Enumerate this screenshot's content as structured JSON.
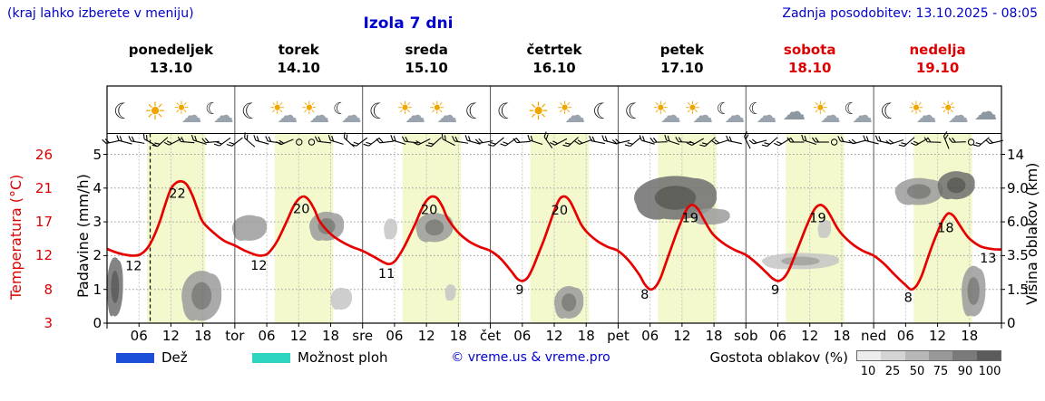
{
  "header": {
    "hint": "(kraj lahko izberete v meniju)",
    "title": "Izola 7 dni",
    "updated": "Zadnja posodobitev: 13.10.2025 - 08:05"
  },
  "colors": {
    "accent_blue": "#0000cd",
    "accent_red": "#dd0000",
    "day_band": "#f3f9cc",
    "curve_red": "#e60000"
  },
  "axes": {
    "left_temp": {
      "title": "Temperatura (°C)",
      "color": "#dd0000",
      "ticks": [
        "26",
        "21",
        "17",
        "12",
        "8",
        "3"
      ]
    },
    "left_precip": {
      "title": "Padavine (mm/h)",
      "ticks": [
        "5",
        "4",
        "3",
        "2",
        "1",
        "0"
      ]
    },
    "right_cloud": {
      "title": "Višina oblakov (km)",
      "ticks": [
        "14",
        "9.0",
        "6.0",
        "3.5",
        "1.5",
        "0"
      ]
    },
    "x_ticks": [
      {
        "label": "06",
        "hour": 6
      },
      {
        "label": "12",
        "hour": 12
      },
      {
        "label": "18",
        "hour": 18
      }
    ],
    "day_abbrevs": [
      "tor",
      "sre",
      "čet",
      "pet",
      "sob",
      "ned"
    ]
  },
  "days": [
    {
      "name": "ponedeljek",
      "date": "13.10",
      "color": "#000000",
      "icons": [
        "moon",
        "sun",
        "sun-cloud",
        "moon-cloud"
      ]
    },
    {
      "name": "torek",
      "date": "14.10",
      "color": "#000000",
      "icons": [
        "moon",
        "sun-cloud",
        "sun-cloud",
        "moon-cloud"
      ]
    },
    {
      "name": "sreda",
      "date": "15.10",
      "color": "#000000",
      "icons": [
        "moon",
        "sun-cloud",
        "sun-cloud",
        "moon"
      ]
    },
    {
      "name": "četrtek",
      "date": "16.10",
      "color": "#000000",
      "icons": [
        "moon",
        "sun",
        "sun-cloud",
        "moon"
      ]
    },
    {
      "name": "petek",
      "date": "17.10",
      "color": "#000000",
      "icons": [
        "moon",
        "sun-cloud",
        "sun-cloud",
        "moon-cloud"
      ]
    },
    {
      "name": "sobota",
      "date": "18.10",
      "color": "#dd0000",
      "icons": [
        "moon-cloud",
        "cloud",
        "sun-cloud",
        "moon-cloud"
      ]
    },
    {
      "name": "nedelja",
      "date": "19.10",
      "color": "#dd0000",
      "icons": [
        "moon",
        "sun-cloud",
        "sun-cloud",
        "cloud"
      ]
    }
  ],
  "chart_data": {
    "type": "line",
    "title": "Izola 7 dni",
    "hours_total": 168,
    "days_count": 7,
    "daytime_band_hours": [
      7.5,
      18.5
    ],
    "now_line_hour": 8.1,
    "temp_axis_anchors": [
      [
        3,
        0
      ],
      [
        8,
        1
      ],
      [
        12,
        2
      ],
      [
        17,
        3
      ],
      [
        21,
        4
      ],
      [
        26,
        5
      ]
    ],
    "cloud_axis_anchors_km": [
      [
        0,
        0
      ],
      [
        1.5,
        1
      ],
      [
        3.5,
        2
      ],
      [
        6,
        3
      ],
      [
        9,
        4
      ],
      [
        14,
        5
      ]
    ],
    "series": [
      {
        "name": "Temperatura",
        "color": "#e60000",
        "points": [
          [
            0,
            13
          ],
          [
            2,
            12.4
          ],
          [
            4,
            12.05
          ],
          [
            5,
            12
          ],
          [
            6,
            12.1
          ],
          [
            7,
            12.6
          ],
          [
            8,
            13.6
          ],
          [
            9,
            15.2
          ],
          [
            10,
            17.2
          ],
          [
            11,
            19.2
          ],
          [
            12,
            20.9
          ],
          [
            13,
            21.8
          ],
          [
            14,
            22
          ],
          [
            15,
            21.5
          ],
          [
            16,
            20.2
          ],
          [
            17,
            18.5
          ],
          [
            18,
            17
          ],
          [
            20,
            15.4
          ],
          [
            22,
            14.2
          ],
          [
            24,
            13.5
          ],
          [
            26,
            12.7
          ],
          [
            28,
            12.1
          ],
          [
            29,
            12
          ],
          [
            30,
            12.2
          ],
          [
            31,
            13
          ],
          [
            32,
            14.2
          ],
          [
            33,
            15.8
          ],
          [
            34,
            17.4
          ],
          [
            35,
            18.8
          ],
          [
            36,
            19.7
          ],
          [
            37,
            20
          ],
          [
            38,
            19.5
          ],
          [
            39,
            18.4
          ],
          [
            40,
            17
          ],
          [
            42,
            15.2
          ],
          [
            44,
            14.1
          ],
          [
            46,
            13.3
          ],
          [
            48,
            12.7
          ],
          [
            50,
            11.9
          ],
          [
            52,
            11.2
          ],
          [
            53,
            11
          ],
          [
            54,
            11.3
          ],
          [
            55,
            12.2
          ],
          [
            56,
            13.6
          ],
          [
            57,
            15.2
          ],
          [
            58,
            16.9
          ],
          [
            59,
            18.4
          ],
          [
            60,
            19.5
          ],
          [
            61,
            20
          ],
          [
            62,
            19.8
          ],
          [
            63,
            18.8
          ],
          [
            64,
            17.4
          ],
          [
            66,
            15.4
          ],
          [
            68,
            14.1
          ],
          [
            70,
            13.3
          ],
          [
            72,
            12.7
          ],
          [
            74,
            11.6
          ],
          [
            76,
            10.1
          ],
          [
            77,
            9.3
          ],
          [
            78,
            9
          ],
          [
            79,
            9.4
          ],
          [
            80,
            10.6
          ],
          [
            81,
            12.2
          ],
          [
            82,
            14.2
          ],
          [
            83,
            16.4
          ],
          [
            84,
            18.3
          ],
          [
            85,
            19.7
          ],
          [
            86,
            20
          ],
          [
            87,
            19.4
          ],
          [
            88,
            18.1
          ],
          [
            89,
            16.7
          ],
          [
            90,
            15.6
          ],
          [
            92,
            14.2
          ],
          [
            94,
            13.3
          ],
          [
            96,
            12.7
          ],
          [
            98,
            11.4
          ],
          [
            100,
            9.7
          ],
          [
            101,
            8.6
          ],
          [
            102,
            8
          ],
          [
            103,
            8.3
          ],
          [
            104,
            9.4
          ],
          [
            105,
            11.2
          ],
          [
            106,
            13.2
          ],
          [
            107,
            15.4
          ],
          [
            108,
            17.3
          ],
          [
            109,
            18.6
          ],
          [
            110,
            19
          ],
          [
            111,
            18.5
          ],
          [
            112,
            17.4
          ],
          [
            113,
            16.1
          ],
          [
            114,
            15
          ],
          [
            116,
            13.7
          ],
          [
            118,
            12.8
          ],
          [
            120,
            12.1
          ],
          [
            122,
            11.1
          ],
          [
            124,
            9.9
          ],
          [
            125,
            9.3
          ],
          [
            126,
            9
          ],
          [
            127,
            9.3
          ],
          [
            128,
            10.2
          ],
          [
            129,
            11.7
          ],
          [
            130,
            13.6
          ],
          [
            131,
            15.6
          ],
          [
            132,
            17.4
          ],
          [
            133,
            18.6
          ],
          [
            134,
            19
          ],
          [
            135,
            18.6
          ],
          [
            136,
            17.6
          ],
          [
            137,
            16.3
          ],
          [
            138,
            15.2
          ],
          [
            140,
            13.7
          ],
          [
            142,
            12.7
          ],
          [
            144,
            12
          ],
          [
            146,
            11
          ],
          [
            148,
            9.7
          ],
          [
            150,
            8.5
          ],
          [
            151,
            8
          ],
          [
            152,
            8.4
          ],
          [
            153,
            9.6
          ],
          [
            154,
            11.4
          ],
          [
            155,
            13.5
          ],
          [
            156,
            15.5
          ],
          [
            157,
            17.2
          ],
          [
            158,
            18
          ],
          [
            159,
            17.7
          ],
          [
            160,
            16.7
          ],
          [
            161,
            15.5
          ],
          [
            162,
            14.5
          ],
          [
            164,
            13.4
          ],
          [
            166,
            13
          ],
          [
            168,
            12.9
          ]
        ]
      }
    ],
    "point_labels": [
      {
        "text": "12",
        "t": 5,
        "dy": 16
      },
      {
        "text": "22",
        "t": 13.2,
        "dy": 17
      },
      {
        "text": "12",
        "t": 28.5,
        "dy": 16
      },
      {
        "text": "20",
        "t": 36.5,
        "dy": 17
      },
      {
        "text": "11",
        "t": 52.5,
        "dy": 16
      },
      {
        "text": "20",
        "t": 60.5,
        "dy": 17
      },
      {
        "text": "9",
        "t": 77.5,
        "dy": 16
      },
      {
        "text": "20",
        "t": 85,
        "dy": 17
      },
      {
        "text": "8",
        "t": 101,
        "dy": 16
      },
      {
        "text": "19",
        "t": 109.5,
        "dy": 17
      },
      {
        "text": "9",
        "t": 125.5,
        "dy": 16
      },
      {
        "text": "19",
        "t": 133.5,
        "dy": 17
      },
      {
        "text": "8",
        "t": 150.5,
        "dy": 16
      },
      {
        "text": "18",
        "t": 157.5,
        "dy": 17
      },
      {
        "text": "13",
        "t": 165.5,
        "dy": 16
      }
    ],
    "cloud_patches": [
      {
        "t0": 0,
        "t1": 3,
        "km0": 0.3,
        "km1": 3.4,
        "shade": "dark",
        "core": true
      },
      {
        "t0": 14,
        "t1": 21.5,
        "km0": 0.1,
        "km1": 2.6,
        "shade": "mid",
        "core": true
      },
      {
        "t0": 23.5,
        "t1": 30,
        "km0": 4.6,
        "km1": 6.6,
        "shade": "mid",
        "core": false
      },
      {
        "t0": 38,
        "t1": 44.5,
        "km0": 4.6,
        "km1": 6.9,
        "shade": "mid",
        "core": true
      },
      {
        "t0": 42,
        "t1": 46,
        "km0": 0.6,
        "km1": 1.6,
        "shade": "light",
        "core": false
      },
      {
        "t0": 52,
        "t1": 54.5,
        "km0": 4.7,
        "km1": 6.3,
        "shade": "light",
        "core": false
      },
      {
        "t0": 58,
        "t1": 65,
        "km0": 4.5,
        "km1": 6.8,
        "shade": "mid",
        "core": true
      },
      {
        "t0": 63.5,
        "t1": 65.5,
        "km0": 1.0,
        "km1": 1.8,
        "shade": "light",
        "core": false
      },
      {
        "t0": 84,
        "t1": 89.5,
        "km0": 0.2,
        "km1": 1.7,
        "shade": "mid",
        "core": true
      },
      {
        "t0": 99,
        "t1": 114.5,
        "km0": 6.2,
        "km1": 10.8,
        "shade": "dark",
        "core": true
      },
      {
        "t0": 110,
        "t1": 117,
        "km0": 5.8,
        "km1": 7.2,
        "shade": "mid",
        "core": false
      },
      {
        "t0": 123,
        "t1": 137.5,
        "km0": 2.7,
        "km1": 3.7,
        "shade": "light",
        "core": true
      },
      {
        "t0": 133.5,
        "t1": 136,
        "km0": 4.8,
        "km1": 6.2,
        "shade": "light",
        "core": false
      },
      {
        "t0": 148,
        "t1": 157,
        "km0": 7.5,
        "km1": 10.5,
        "shade": "mid",
        "core": true
      },
      {
        "t0": 156,
        "t1": 163,
        "km0": 8,
        "km1": 11.5,
        "shade": "dark",
        "core": true
      },
      {
        "t0": 160.5,
        "t1": 165,
        "km0": 0.3,
        "km1": 2.9,
        "shade": "mid",
        "core": true
      }
    ],
    "wind": {
      "count": 72,
      "calm_indices": [
        15,
        16,
        58,
        69
      ]
    }
  },
  "legend": {
    "rain_label": "Dež",
    "rain_color": "#1d4ed8",
    "showers_label": "Možnost ploh",
    "showers_color": "#2dd4bf",
    "copyright": "© vreme.us & vreme.pro",
    "cloud_density_label": "Gostota oblakov (%)",
    "cloud_density_ticks": [
      "10",
      "25",
      "50",
      "75",
      "90",
      "100"
    ],
    "cloud_density_shades": [
      "#ececec",
      "#d4d4d4",
      "#b7b7b7",
      "#989898",
      "#7a7a7a",
      "#5b5b5b"
    ]
  }
}
